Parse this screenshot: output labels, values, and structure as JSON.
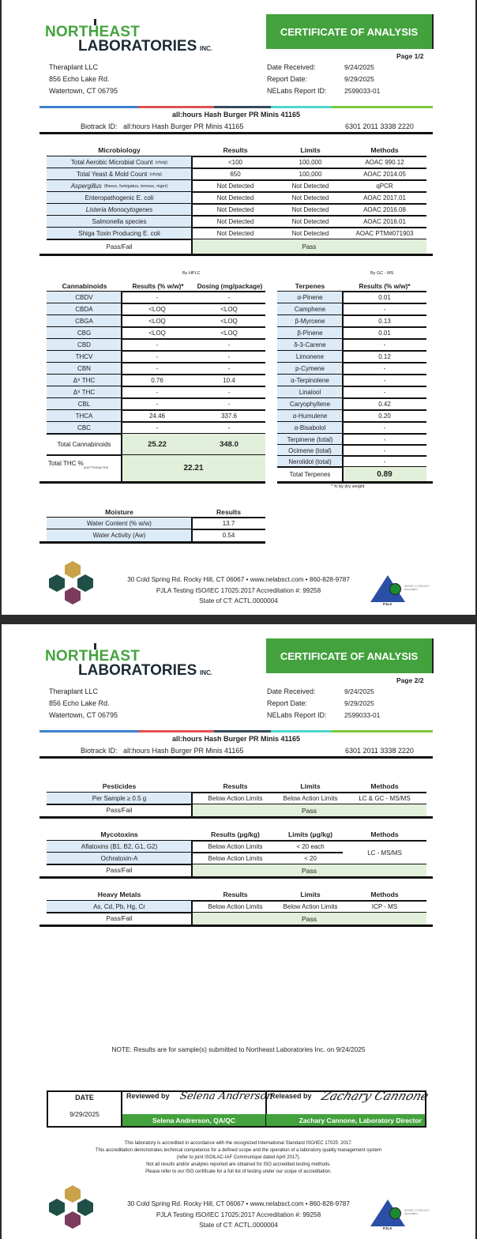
{
  "logo": {
    "line1": "NORTHEAST",
    "line2": "LABORATORIES",
    "suffix": "INC."
  },
  "banner": "CERTIFICATE OF ANALYSIS",
  "colors": {
    "brand_green": "#45a33e",
    "banner_green": "#43a23d",
    "row_blue": "#ddebf7",
    "pass_green": "#e2efda",
    "stripe": [
      "#3f7fd0",
      "#e05252",
      "#36495a",
      "#4fd6c8",
      "#7cc93a"
    ]
  },
  "client": {
    "name": "Theraplant LLC",
    "street": "856 Echo Lake Rd.",
    "city": "Watertown, CT 06795"
  },
  "meta": [
    {
      "label": "Date Received:",
      "value": "9/24/2025"
    },
    {
      "label": "Report Date:",
      "value": "9/29/2025"
    },
    {
      "label": "NELabs Report ID:",
      "value": "2599033-01"
    }
  ],
  "pages": [
    {
      "label": "Page 1/2"
    },
    {
      "label": "Page 2/2"
    }
  ],
  "product": {
    "title": "all:hours Hash Burger PR Minis 41165",
    "biotrack_label": "Biotrack ID:",
    "biotrack_value": "all:hours Hash Burger PR Minis 41165",
    "biotrack_number": "6301 2011 3338 2220"
  },
  "microbiology": {
    "headers": [
      "Microbiology",
      "Results",
      "Limits",
      "Methods"
    ],
    "rows": [
      {
        "name": "Total Aerobic Microbial Count",
        "unit": "(cfu/g)",
        "result": "<100",
        "limit": "100,000",
        "method": "AOAC 990.12"
      },
      {
        "name": "Total Yeast & Mold Count",
        "unit": "(cfu/g)",
        "result": "650",
        "limit": "100,000",
        "method": "AOAC 2014.05"
      },
      {
        "name": "Aspergillus",
        "unit": "(flavus, fumigatus, terreus, niger)",
        "italic": true,
        "result": "Not Detected",
        "limit": "Not Detected",
        "method": "qPCR"
      },
      {
        "name": "Enteropathogenic E. coli",
        "unit": "",
        "result": "Not Detected",
        "limit": "Not Detected",
        "method": "AOAC 2017.01"
      },
      {
        "name": "Listeria Monocytogenes",
        "unit": "",
        "italic": true,
        "result": "Not Detected",
        "limit": "Not Detected",
        "method": "AOAC 2016.08"
      },
      {
        "name": "Salmonella species",
        "unit": "",
        "result": "Not Detected",
        "limit": "Not Detected",
        "method": "AOAC 2016.01"
      },
      {
        "name": "Shiga Toxin Producing E. coli",
        "unit": "",
        "result": "Not Detected",
        "limit": "Not Detected",
        "method": "AOAC PTM#071903"
      }
    ],
    "pass_label": "Pass/Fail",
    "pass_value": "Pass"
  },
  "cannabinoids": {
    "method_note": "By HPLC",
    "headers": [
      "Cannabinoids",
      "Results (% w/w)*",
      "Dosing (mg/package)"
    ],
    "rows": [
      {
        "name": "CBDV",
        "result": "-",
        "dosing": "-"
      },
      {
        "name": "CBDA",
        "result": "<LOQ",
        "dosing": "<LOQ"
      },
      {
        "name": "CBGA",
        "result": "<LOQ",
        "dosing": "<LOQ"
      },
      {
        "name": "CBG",
        "result": "<LOQ",
        "dosing": "<LOQ"
      },
      {
        "name": "CBD",
        "result": "-",
        "dosing": "-"
      },
      {
        "name": "THCV",
        "result": "-",
        "dosing": "-"
      },
      {
        "name": "CBN",
        "result": "-",
        "dosing": "-"
      },
      {
        "name": "Δ⁹ THC",
        "result": "0.76",
        "dosing": "10.4"
      },
      {
        "name": "Δ⁸ THC",
        "result": "-",
        "dosing": "-"
      },
      {
        "name": "CBL",
        "result": "-",
        "dosing": "-"
      },
      {
        "name": "THCA",
        "result": "24.46",
        "dosing": "337.6"
      },
      {
        "name": "CBC",
        "result": "-",
        "dosing": "-"
      }
    ],
    "total_label": "Total Cannabinoids",
    "total_result": "25.22",
    "total_dosing": "348.0",
    "thc_label": "Total THC %",
    "thc_formula": "(0.877*THCA)+THC",
    "thc_value": "22.21"
  },
  "terpenes": {
    "method_note": "By GC - MS",
    "headers": [
      "Terpenes",
      "Results (% w/w)*"
    ],
    "rows": [
      {
        "name": "α-Pinene",
        "result": "0.01"
      },
      {
        "name": "Camphene",
        "result": "-"
      },
      {
        "name": "β-Myrcene",
        "result": "0.13"
      },
      {
        "name": "β-Pinene",
        "result": "0.01"
      },
      {
        "name": "δ-3-Carene",
        "result": "-"
      },
      {
        "name": "Limonene",
        "result": "0.12"
      },
      {
        "name": "p-Cymene",
        "result": "-"
      },
      {
        "name": "α-Terpinolene",
        "result": "-"
      },
      {
        "name": "Linalool",
        "result": "-"
      },
      {
        "name": "Caryophyllene",
        "result": "0.42"
      },
      {
        "name": "α-Humulene",
        "result": "0.20"
      },
      {
        "name": "α-Bisabolol",
        "result": "-"
      },
      {
        "name": "Terpinene (total)",
        "result": "-"
      },
      {
        "name": "Ocimene (total)",
        "result": "-"
      },
      {
        "name": "Nerolidol (total)",
        "result": "-"
      }
    ],
    "total_label": "Total Terpenes",
    "total_value": "0.89",
    "footnote": "* % by dry weight"
  },
  "moisture": {
    "headers": [
      "Moisture",
      "Results"
    ],
    "rows": [
      {
        "name": "Water Content (% w/w)",
        "result": "13.7"
      },
      {
        "name": "Water Activity (Aw)",
        "result": "0.54"
      }
    ]
  },
  "pesticides": {
    "headers": [
      "Pesticides",
      "Results",
      "Limits",
      "Methods"
    ],
    "rows": [
      {
        "name": "Per Sample ≥ 0.5 g",
        "result": "Below Action Limits",
        "limit": "Below Action Limits",
        "method": "LC & GC - MS/MS"
      }
    ],
    "pass_label": "Pass/Fail",
    "pass_value": "Pass"
  },
  "mycotoxins": {
    "headers": [
      "Mycotoxins",
      "Results (µg/kg)",
      "Limits (µg/kg)",
      "Methods"
    ],
    "rows": [
      {
        "name": "Aflatoxins (B1, B2, G1, G2)",
        "result": "Below Action Limits",
        "limit": "< 20 each"
      },
      {
        "name": "Ochratoxin-A",
        "result": "Below Action Limits",
        "limit": "< 20"
      }
    ],
    "method": "LC - MS/MS",
    "pass_label": "Pass/Fail",
    "pass_value": "Pass"
  },
  "heavy_metals": {
    "headers": [
      "Heavy Metals",
      "Results",
      "Limits",
      "Methods"
    ],
    "rows": [
      {
        "name": "As, Cd, Pb, Hg, Cr",
        "result": "Below Action Limits",
        "limit": "Below Action Limits",
        "method": "ICP - MS"
      }
    ],
    "pass_label": "Pass/Fail",
    "pass_value": "Pass"
  },
  "note": "NOTE: Results are for sample(s) submitted to Northeast Laboratories Inc. on  9/24/2025",
  "signatures": {
    "date_label": "DATE",
    "date_value": "9/29/2025",
    "reviewed_label": "Reviewed by",
    "reviewer_signature": "Selena Andrerson",
    "reviewer": "Selena Andrerson, QA/QC",
    "released_label": "Released by",
    "releaser_signature": "Zachary Cannone",
    "releaser": "Zachary Cannone, Laboratory Director"
  },
  "accreditation": [
    "This laboratory is accredited in accordance with the recognized International Standard ISO/IEC 17025: 2017.",
    "This accreditation demonstrates technical competence for a defined scope and the operation of a laboratory quality management system",
    "(refer to joint ISOILAC-IAF Communiqué dated April 2017).",
    "Not all results and/or analytes reported are obtained for ISO accredited testing methods.",
    "Please refer to our ISO certificate for a full list of testing under our scope of accreditation."
  ],
  "footer": {
    "line1": "30 Cold Spring Rd. Rocky Hill, CT 06067  •  www.nelabsct.com  •  860-828-9787",
    "line2": "PJLA Testing ISO/IEC 17025:2017 Accreditation #: 99258",
    "line3": "State of CT: ACTL.0000004",
    "pjla_label": "PJLA",
    "pjla_note": "ISO/IEC 17025:2017 Accredited"
  }
}
